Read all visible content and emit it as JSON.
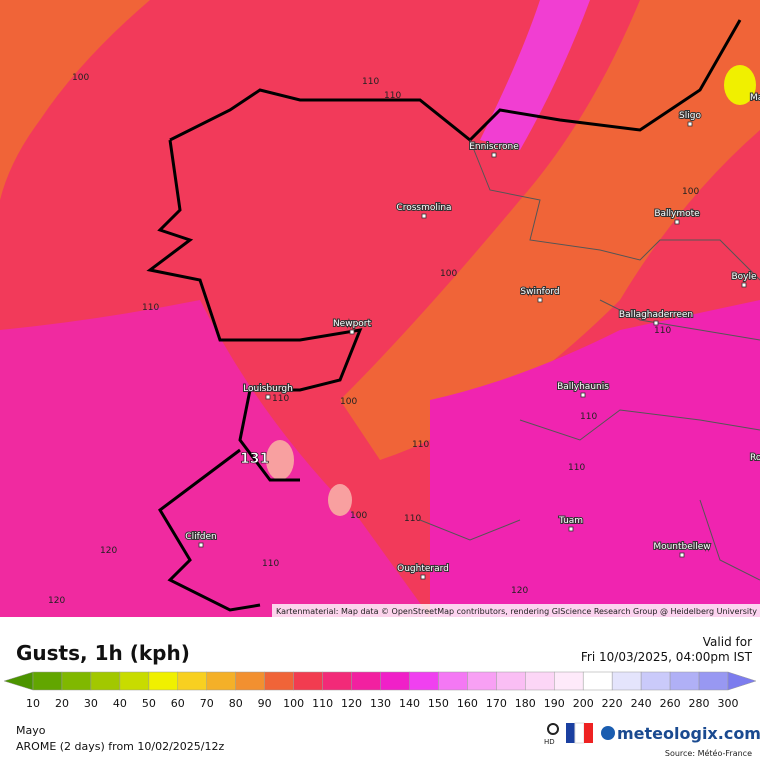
{
  "map": {
    "towns": [
      "Enniscrone",
      "Sligo",
      "Crossmolina",
      "Ballymote",
      "Boyle",
      "Swinford",
      "Newport",
      "Ballaghaderreen",
      "Louisburgh",
      "Ballyhaunis",
      "Tuam",
      "Clifden",
      "Mountbellew",
      "Oughterard"
    ],
    "edge_labels": [
      "Ma",
      "Ro"
    ],
    "contour_labels": [
      "100",
      "110",
      "110",
      "100",
      "110",
      "100",
      "110",
      "100",
      "110",
      "110",
      "100",
      "110",
      "110",
      "110",
      "120",
      "120",
      "120",
      "110"
    ],
    "max_label": "131",
    "attribution": "Kartenmaterial: Map data © OpenStreetMap contributors, rendering GIScience Research Group @ Heidelberg University"
  },
  "header": {
    "title": "Gusts, 1h (kph)",
    "valid_label": "Valid for",
    "valid_time": "Fri 10/03/2025, 04:00pm IST"
  },
  "legend": {
    "under_color": "#4c9400",
    "stops": [
      {
        "value": 10,
        "color": "#62a600"
      },
      {
        "value": 20,
        "color": "#80b800"
      },
      {
        "value": 30,
        "color": "#a2c800"
      },
      {
        "value": 40,
        "color": "#c8dc00"
      },
      {
        "value": 50,
        "color": "#f0f000"
      },
      {
        "value": 60,
        "color": "#f8d020"
      },
      {
        "value": 70,
        "color": "#f4b028"
      },
      {
        "value": 80,
        "color": "#f29030"
      },
      {
        "value": 90,
        "color": "#f06438"
      },
      {
        "value": 100,
        "color": "#f23c50"
      },
      {
        "value": 110,
        "color": "#f22a78"
      },
      {
        "value": 120,
        "color": "#f220a0"
      },
      {
        "value": 130,
        "color": "#f020c8"
      },
      {
        "value": 140,
        "color": "#f040f0"
      },
      {
        "value": 150,
        "color": "#f478f4"
      },
      {
        "value": 160,
        "color": "#f8a0f4"
      },
      {
        "value": 170,
        "color": "#fabef4"
      },
      {
        "value": 180,
        "color": "#fcd6f6"
      },
      {
        "value": 190,
        "color": "#feeafa"
      },
      {
        "value": 200,
        "color": "#ffffff"
      },
      {
        "value": 220,
        "color": "#e4e4fc"
      },
      {
        "value": 240,
        "color": "#cacafa"
      },
      {
        "value": 260,
        "color": "#b0b0f6"
      },
      {
        "value": 280,
        "color": "#9898f2"
      },
      {
        "value": 300,
        "color": "#7c7cee"
      }
    ]
  },
  "footer": {
    "region": "Mayo",
    "model": "AROME (2 days) from 10/02/2025/12z",
    "hd": "HD",
    "brand": "meteologix.com",
    "source": "Source: Météo-France"
  }
}
